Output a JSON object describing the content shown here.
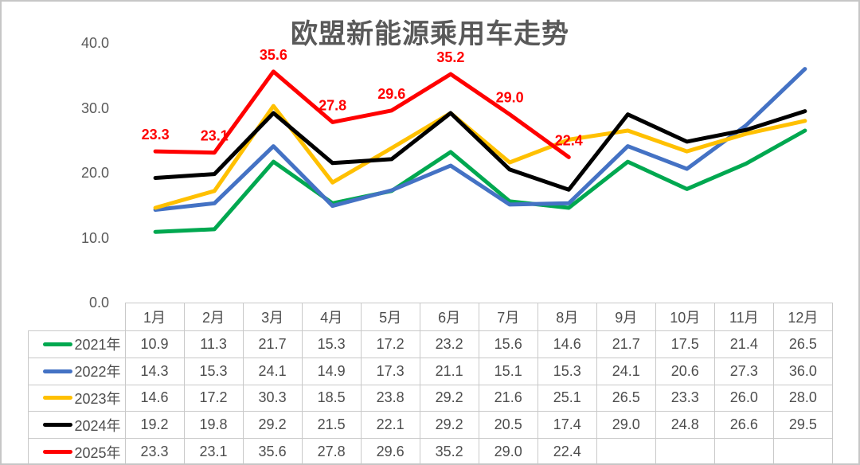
{
  "colors": {
    "title_text": "#595959",
    "axis_text": "#595959",
    "table_text": "#4D4D4D",
    "table_border": "#C9C9C9",
    "data_label": "#FF0000"
  },
  "chart_data": {
    "type": "line",
    "title": "欧盟新能源乘用车走势",
    "xlabel": "",
    "ylabel": "",
    "ylim": [
      0,
      40
    ],
    "yticks": [
      40,
      30,
      20,
      10,
      0
    ],
    "grid": false,
    "legend_position": "table-row-headers-left",
    "x": [
      "1月",
      "2月",
      "3月",
      "4月",
      "5月",
      "6月",
      "7月",
      "8月",
      "9月",
      "10月",
      "11月",
      "12月"
    ],
    "series": [
      {
        "name": "2021年",
        "color": "#00A850",
        "values": [
          10.9,
          11.3,
          21.7,
          15.3,
          17.2,
          23.2,
          15.6,
          14.6,
          21.7,
          17.5,
          21.4,
          26.5
        ]
      },
      {
        "name": "2022年",
        "color": "#4472C4",
        "values": [
          14.3,
          15.3,
          24.1,
          14.9,
          17.3,
          21.1,
          15.1,
          15.3,
          24.1,
          20.6,
          27.3,
          36.0
        ]
      },
      {
        "name": "2023年",
        "color": "#FFC000",
        "values": [
          14.6,
          17.2,
          30.3,
          18.5,
          23.8,
          29.2,
          21.6,
          25.1,
          26.5,
          23.3,
          26.0,
          28.0
        ]
      },
      {
        "name": "2024年",
        "color": "#000000",
        "values": [
          19.2,
          19.8,
          29.2,
          21.5,
          22.1,
          29.2,
          20.5,
          17.4,
          29.0,
          24.8,
          26.6,
          29.5
        ]
      },
      {
        "name": "2025年",
        "color": "#FF0000",
        "data_labels": true,
        "values": [
          23.3,
          23.1,
          35.6,
          27.8,
          29.6,
          35.2,
          29.0,
          22.4
        ]
      }
    ]
  }
}
